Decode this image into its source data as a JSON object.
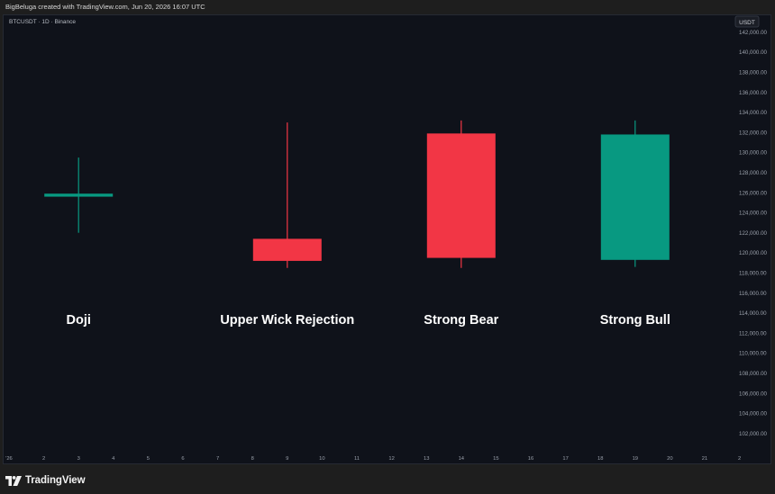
{
  "header": {
    "attribution": "BigBeluga created with TradingView.com, Jun 20, 2026 16:07 UTC"
  },
  "footer": {
    "brand": "TradingView"
  },
  "colors": {
    "background": "#0f121a",
    "bull": "#089981",
    "bear": "#f23645",
    "text": "#ffffff",
    "axis_text": "#9aa0ab"
  },
  "chart_data": {
    "type": "candlestick",
    "symbol_label": "BTCUSDT · 1D · Binance",
    "currency": "USDT",
    "ylim": [
      100000,
      143500
    ],
    "y_ticks": [
      "102,000.00",
      "104,000.00",
      "106,000.00",
      "108,000.00",
      "110,000.00",
      "112,000.00",
      "114,000.00",
      "116,000.00",
      "118,000.00",
      "120,000.00",
      "122,000.00",
      "124,000.00",
      "126,000.00",
      "128,000.00",
      "130,000.00",
      "132,000.00",
      "134,000.00",
      "136,000.00",
      "138,000.00",
      "140,000.00",
      "142,000.00"
    ],
    "x_ticks": [
      "'26",
      "2",
      "3",
      "4",
      "5",
      "6",
      "7",
      "8",
      "9",
      "10",
      "11",
      "12",
      "13",
      "14",
      "15",
      "16",
      "17",
      "18",
      "19",
      "20",
      "21",
      "2"
    ],
    "candles": [
      {
        "x": "3",
        "open": 125600,
        "high": 129500,
        "low": 122000,
        "close": 125900,
        "label": "Doji",
        "color": "bull"
      },
      {
        "x": "9",
        "open": 121400,
        "high": 133000,
        "low": 118500,
        "close": 119200,
        "label": "Upper Wick Rejection",
        "color": "bear"
      },
      {
        "x": "14",
        "open": 131900,
        "high": 133200,
        "low": 118500,
        "close": 119500,
        "label": "Strong Bear",
        "color": "bear"
      },
      {
        "x": "19",
        "open": 119300,
        "high": 133200,
        "low": 118600,
        "close": 131800,
        "label": "Strong Bull",
        "color": "bull"
      }
    ]
  }
}
